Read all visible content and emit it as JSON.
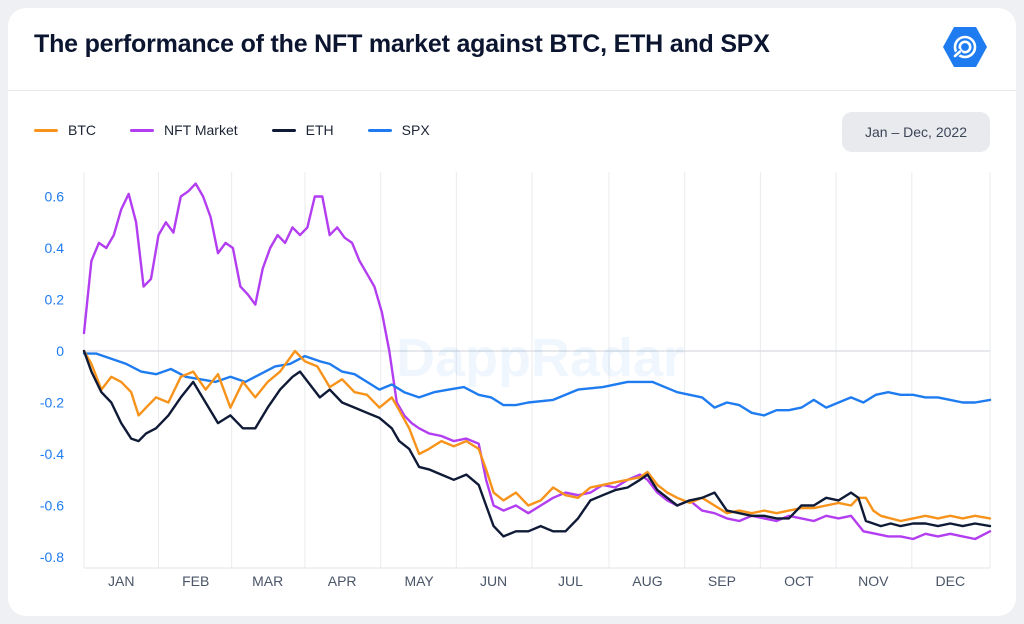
{
  "title": "The performance of the NFT market against BTC, ETH and SPX",
  "logo_icon": "dappradar-logo-icon",
  "watermark": "DappRadar",
  "date_range": "Jan – Dec, 2022",
  "colors": {
    "btc": "#f7931a",
    "nft": "#b33df0",
    "eth": "#0f1a36",
    "spx": "#1f7cf0"
  },
  "legend": [
    {
      "label": "BTC",
      "color": "#f7931a"
    },
    {
      "label": "NFT Market",
      "color": "#b33df0"
    },
    {
      "label": "ETH",
      "color": "#0f1a36"
    },
    {
      "label": "SPX",
      "color": "#1f7cf0"
    }
  ],
  "chart_data": {
    "type": "line",
    "title": "The performance of the NFT market against BTC, ETH and SPX",
    "xlabel": "",
    "ylabel": "",
    "ylim": [
      -0.8,
      0.65
    ],
    "yticks": [
      0.6,
      0.4,
      0.2,
      0,
      -0.2,
      -0.4,
      -0.6,
      -0.8
    ],
    "ytick_labels": [
      "0.6",
      "0.4",
      "0.2",
      "0",
      "-0.2",
      "-0.4",
      "-0.6",
      "-0.8"
    ],
    "xlim": [
      1,
      366
    ],
    "x_unit": "day of year 2022",
    "x_ticks": [
      {
        "label": "JAN",
        "day": 16
      },
      {
        "label": "FEB",
        "day": 46
      },
      {
        "label": "MAR",
        "day": 75
      },
      {
        "label": "APR",
        "day": 105
      },
      {
        "label": "MAY",
        "day": 136
      },
      {
        "label": "JUN",
        "day": 166
      },
      {
        "label": "JUL",
        "day": 197
      },
      {
        "label": "AUG",
        "day": 228
      },
      {
        "label": "SEP",
        "day": 258
      },
      {
        "label": "OCT",
        "day": 289
      },
      {
        "label": "NOV",
        "day": 319
      },
      {
        "label": "DEC",
        "day": 350
      }
    ],
    "grid": true,
    "legend_position": "top-left",
    "series": [
      {
        "name": "BTC",
        "color": "#f7931a",
        "x": [
          1,
          4,
          8,
          12,
          16,
          20,
          23,
          26,
          30,
          35,
          40,
          45,
          50,
          55,
          60,
          65,
          70,
          75,
          80,
          86,
          90,
          95,
          100,
          105,
          110,
          115,
          120,
          125,
          128,
          132,
          136,
          140,
          145,
          150,
          155,
          160,
          163,
          166,
          170,
          175,
          180,
          185,
          190,
          195,
          200,
          205,
          210,
          215,
          220,
          225,
          228,
          232,
          236,
          240,
          245,
          250,
          255,
          260,
          265,
          270,
          275,
          280,
          285,
          290,
          295,
          300,
          305,
          310,
          313,
          316,
          319,
          322,
          326,
          330,
          335,
          340,
          345,
          350,
          355,
          360,
          366
        ],
        "y": [
          0.0,
          -0.05,
          -0.15,
          -0.1,
          -0.12,
          -0.16,
          -0.25,
          -0.22,
          -0.18,
          -0.2,
          -0.1,
          -0.08,
          -0.15,
          -0.09,
          -0.22,
          -0.12,
          -0.18,
          -0.12,
          -0.08,
          0.0,
          -0.04,
          -0.06,
          -0.14,
          -0.11,
          -0.16,
          -0.17,
          -0.22,
          -0.18,
          -0.23,
          -0.3,
          -0.4,
          -0.38,
          -0.35,
          -0.37,
          -0.35,
          -0.38,
          -0.46,
          -0.55,
          -0.58,
          -0.55,
          -0.6,
          -0.58,
          -0.53,
          -0.56,
          -0.57,
          -0.53,
          -0.52,
          -0.51,
          -0.5,
          -0.49,
          -0.47,
          -0.52,
          -0.55,
          -0.57,
          -0.59,
          -0.57,
          -0.6,
          -0.63,
          -0.62,
          -0.63,
          -0.62,
          -0.63,
          -0.62,
          -0.61,
          -0.61,
          -0.6,
          -0.59,
          -0.6,
          -0.57,
          -0.57,
          -0.62,
          -0.64,
          -0.65,
          -0.66,
          -0.65,
          -0.64,
          -0.65,
          -0.64,
          -0.65,
          -0.64,
          -0.65
        ]
      },
      {
        "name": "NFT Market",
        "color": "#b33df0",
        "x": [
          1,
          4,
          7,
          10,
          13,
          16,
          19,
          22,
          25,
          28,
          31,
          34,
          37,
          40,
          43,
          46,
          49,
          52,
          55,
          58,
          61,
          64,
          67,
          70,
          73,
          76,
          79,
          82,
          85,
          88,
          91,
          94,
          97,
          100,
          103,
          106,
          109,
          112,
          115,
          118,
          121,
          124,
          127,
          130,
          133,
          136,
          140,
          145,
          150,
          155,
          160,
          163,
          166,
          170,
          175,
          180,
          185,
          190,
          195,
          200,
          205,
          210,
          215,
          220,
          225,
          228,
          232,
          236,
          240,
          245,
          250,
          255,
          260,
          265,
          270,
          275,
          280,
          285,
          290,
          295,
          300,
          305,
          310,
          315,
          320,
          325,
          330,
          335,
          340,
          345,
          350,
          355,
          360,
          366
        ],
        "y": [
          0.07,
          0.35,
          0.42,
          0.4,
          0.45,
          0.55,
          0.61,
          0.5,
          0.25,
          0.28,
          0.45,
          0.5,
          0.46,
          0.6,
          0.62,
          0.65,
          0.6,
          0.52,
          0.38,
          0.42,
          0.4,
          0.25,
          0.22,
          0.18,
          0.32,
          0.4,
          0.45,
          0.42,
          0.48,
          0.45,
          0.48,
          0.6,
          0.6,
          0.45,
          0.48,
          0.44,
          0.42,
          0.35,
          0.3,
          0.25,
          0.15,
          0.0,
          -0.2,
          -0.25,
          -0.28,
          -0.3,
          -0.32,
          -0.33,
          -0.35,
          -0.34,
          -0.36,
          -0.5,
          -0.6,
          -0.62,
          -0.6,
          -0.63,
          -0.6,
          -0.57,
          -0.55,
          -0.56,
          -0.55,
          -0.52,
          -0.53,
          -0.5,
          -0.48,
          -0.5,
          -0.55,
          -0.58,
          -0.6,
          -0.58,
          -0.62,
          -0.63,
          -0.65,
          -0.66,
          -0.64,
          -0.65,
          -0.66,
          -0.64,
          -0.65,
          -0.66,
          -0.64,
          -0.65,
          -0.64,
          -0.7,
          -0.71,
          -0.72,
          -0.72,
          -0.73,
          -0.71,
          -0.72,
          -0.71,
          -0.72,
          -0.73,
          -0.7
        ]
      },
      {
        "name": "ETH",
        "color": "#0f1a36",
        "x": [
          1,
          4,
          8,
          12,
          16,
          20,
          23,
          26,
          30,
          35,
          40,
          45,
          50,
          55,
          60,
          65,
          70,
          75,
          80,
          85,
          88,
          92,
          96,
          100,
          105,
          110,
          115,
          120,
          125,
          128,
          132,
          136,
          140,
          145,
          150,
          155,
          160,
          163,
          166,
          170,
          175,
          180,
          185,
          190,
          195,
          200,
          205,
          210,
          215,
          220,
          225,
          228,
          232,
          236,
          240,
          245,
          250,
          255,
          260,
          265,
          270,
          275,
          280,
          285,
          290,
          295,
          300,
          305,
          310,
          313,
          316,
          319,
          322,
          326,
          330,
          335,
          340,
          345,
          350,
          355,
          360,
          366
        ],
        "y": [
          0.0,
          -0.08,
          -0.16,
          -0.2,
          -0.28,
          -0.34,
          -0.35,
          -0.32,
          -0.3,
          -0.25,
          -0.18,
          -0.12,
          -0.2,
          -0.28,
          -0.25,
          -0.3,
          -0.3,
          -0.22,
          -0.15,
          -0.1,
          -0.08,
          -0.13,
          -0.18,
          -0.15,
          -0.2,
          -0.22,
          -0.24,
          -0.26,
          -0.3,
          -0.35,
          -0.38,
          -0.45,
          -0.46,
          -0.48,
          -0.5,
          -0.48,
          -0.52,
          -0.6,
          -0.68,
          -0.72,
          -0.7,
          -0.7,
          -0.68,
          -0.7,
          -0.7,
          -0.65,
          -0.58,
          -0.56,
          -0.54,
          -0.53,
          -0.5,
          -0.48,
          -0.54,
          -0.57,
          -0.6,
          -0.58,
          -0.57,
          -0.55,
          -0.62,
          -0.63,
          -0.64,
          -0.64,
          -0.65,
          -0.65,
          -0.6,
          -0.6,
          -0.57,
          -0.58,
          -0.55,
          -0.57,
          -0.66,
          -0.67,
          -0.68,
          -0.67,
          -0.68,
          -0.67,
          -0.67,
          -0.68,
          -0.67,
          -0.68,
          -0.67,
          -0.68
        ]
      },
      {
        "name": "SPX",
        "color": "#1f7cf0",
        "x": [
          1,
          6,
          12,
          18,
          24,
          30,
          36,
          42,
          48,
          54,
          60,
          66,
          72,
          78,
          84,
          90,
          96,
          100,
          105,
          110,
          115,
          120,
          125,
          130,
          136,
          142,
          148,
          154,
          160,
          165,
          170,
          175,
          180,
          190,
          200,
          210,
          220,
          230,
          240,
          250,
          255,
          260,
          265,
          270,
          275,
          280,
          285,
          290,
          295,
          300,
          305,
          310,
          315,
          320,
          325,
          330,
          335,
          340,
          345,
          350,
          355,
          360,
          366
        ],
        "y": [
          -0.01,
          -0.01,
          -0.03,
          -0.05,
          -0.08,
          -0.09,
          -0.07,
          -0.1,
          -0.11,
          -0.12,
          -0.1,
          -0.12,
          -0.09,
          -0.06,
          -0.05,
          -0.02,
          -0.04,
          -0.05,
          -0.08,
          -0.09,
          -0.12,
          -0.15,
          -0.13,
          -0.16,
          -0.18,
          -0.16,
          -0.15,
          -0.14,
          -0.17,
          -0.18,
          -0.21,
          -0.21,
          -0.2,
          -0.19,
          -0.15,
          -0.14,
          -0.12,
          -0.12,
          -0.16,
          -0.18,
          -0.22,
          -0.2,
          -0.21,
          -0.24,
          -0.25,
          -0.23,
          -0.23,
          -0.22,
          -0.19,
          -0.22,
          -0.2,
          -0.18,
          -0.2,
          -0.17,
          -0.16,
          -0.17,
          -0.17,
          -0.18,
          -0.18,
          -0.19,
          -0.2,
          -0.2,
          -0.19
        ]
      }
    ]
  }
}
